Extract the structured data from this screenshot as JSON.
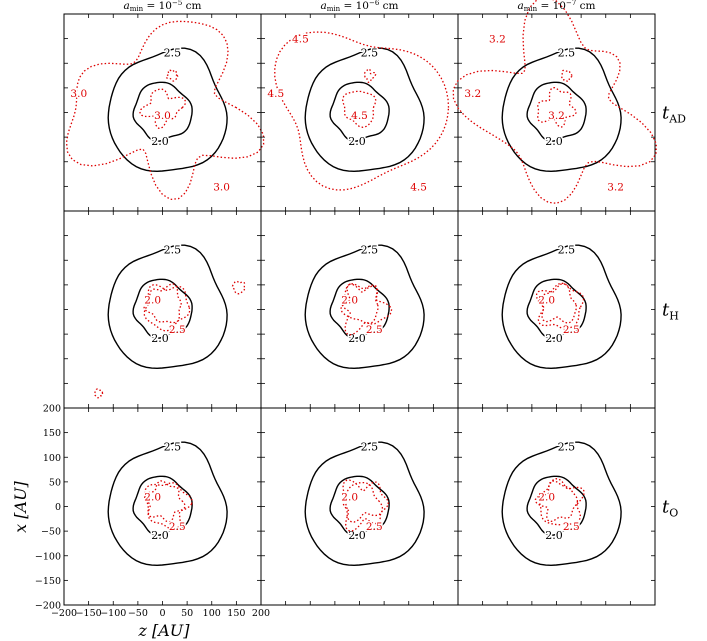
{
  "chart_data": {
    "type": "contour",
    "layout": {
      "rows": 3,
      "cols": 3
    },
    "col_titles": [
      {
        "prefix": "a",
        "sub": "min",
        "mid": " = 10",
        "sup": "−5",
        "suffix": " cm"
      },
      {
        "prefix": "a",
        "sub": "min",
        "mid": " = 10",
        "sup": "−6",
        "suffix": " cm"
      },
      {
        "prefix": "a",
        "sub": "min",
        "mid": " = 10",
        "sup": "−7",
        "suffix": " cm"
      }
    ],
    "row_labels": [
      {
        "main": "t",
        "sub": "AD"
      },
      {
        "main": "t",
        "sub": "H"
      },
      {
        "main": "t",
        "sub": "O"
      }
    ],
    "xlabel": "z [AU]",
    "ylabel": "x [AU]",
    "xlim": [
      -200,
      200
    ],
    "ylim": [
      -200,
      200
    ],
    "xticks": [
      -200,
      -150,
      -100,
      -50,
      0,
      50,
      100,
      150,
      200
    ],
    "yticks": [
      -200,
      -150,
      -100,
      -50,
      0,
      50,
      100,
      150,
      200
    ],
    "xtick_labels": [
      "−200",
      "−150",
      "−100",
      "−50",
      "0",
      "50",
      "100",
      "150",
      "200"
    ],
    "ytick_labels": [
      "−200",
      "−150",
      "−100",
      "−50",
      "0",
      "50",
      "100",
      "150",
      "200"
    ],
    "black_contours": {
      "color": "#000000",
      "levels": [
        {
          "label": "2.5",
          "radius": 122
        },
        {
          "label": "2.0",
          "radius": 58
        }
      ]
    },
    "red_color": "#dd0000",
    "panels": [
      {
        "row": 0,
        "col": 0,
        "red_labels": [
          "3.0",
          "3.0",
          "3.0"
        ]
      },
      {
        "row": 0,
        "col": 1,
        "red_labels": [
          "4.5",
          "4.5",
          "4.5",
          "4.5"
        ]
      },
      {
        "row": 0,
        "col": 2,
        "red_labels": [
          "3.2",
          "3.2",
          "3.2",
          "3.2"
        ]
      },
      {
        "row": 1,
        "col": 0,
        "red_labels": [
          "2.0",
          "2.5"
        ]
      },
      {
        "row": 1,
        "col": 1,
        "red_labels": [
          "2.0",
          "2.5"
        ]
      },
      {
        "row": 1,
        "col": 2,
        "red_labels": [
          "2.0",
          "2.5"
        ]
      },
      {
        "row": 2,
        "col": 0,
        "red_labels": [
          "2.0",
          "2.5"
        ]
      },
      {
        "row": 2,
        "col": 1,
        "red_labels": [
          "2.0",
          "2.5"
        ]
      },
      {
        "row": 2,
        "col": 2,
        "red_labels": [
          "2.0",
          "2.5"
        ]
      }
    ]
  }
}
